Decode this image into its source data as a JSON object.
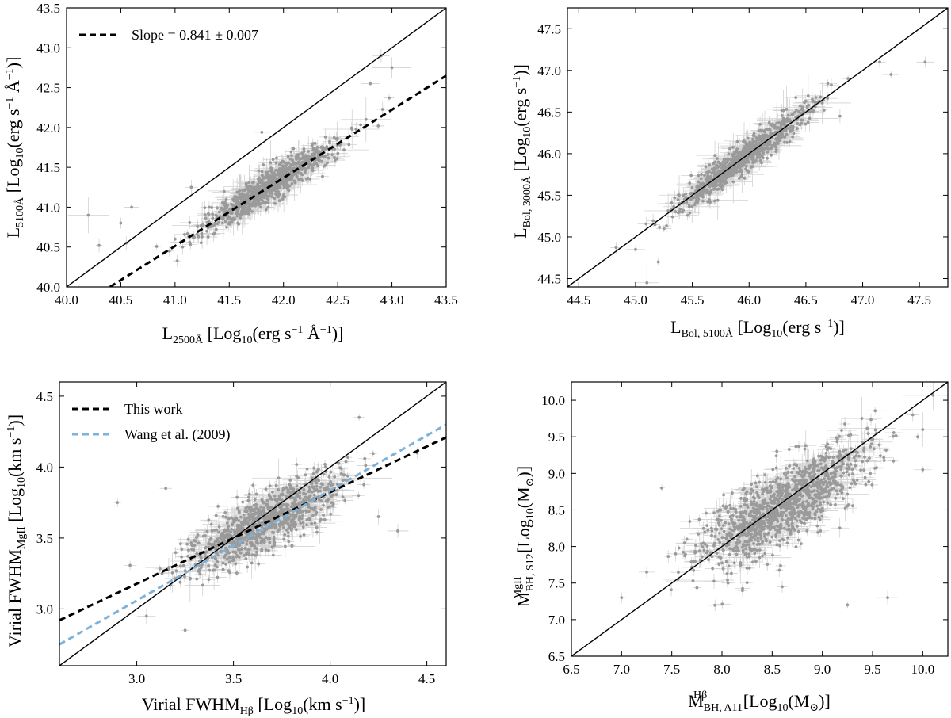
{
  "colors": {
    "points": "#9a9a9a",
    "errorbars": "#d2d2d2",
    "one_to_one": "#000000",
    "fit_black": "#000000",
    "fit_blue": "#7fb2d8"
  },
  "chart_data": [
    {
      "type": "scatter",
      "xlabel": "L2500Å [Log10(erg s−1 Å−1)]",
      "ylabel": "L5100Å [Log10(erg s−1 Å−1)]",
      "xlim": [
        40.0,
        43.5
      ],
      "ylim": [
        40.0,
        43.5
      ],
      "xticks": [
        "40.0",
        "40.5",
        "41.0",
        "41.5",
        "42.0",
        "42.5",
        "43.0",
        "43.5"
      ],
      "yticks": [
        "40.0",
        "40.5",
        "41.0",
        "41.5",
        "42.0",
        "42.5",
        "43.0",
        "43.5"
      ],
      "grid": false,
      "legend_position": "top-left",
      "legend": [
        {
          "label": "Slope = 0.841 ± 0.007",
          "style": "dashed",
          "color": "#000000"
        }
      ],
      "reference_line": {
        "x": [
          40.0,
          43.5
        ],
        "y": [
          40.0,
          43.5
        ]
      },
      "fit_lines": [
        {
          "label": "Slope = 0.841 ± 0.007",
          "x": [
            40.4,
            43.5
          ],
          "y": [
            40.0,
            42.65
          ],
          "color": "#000000"
        }
      ],
      "cloud": {
        "x_center": 41.85,
        "x_sd": 0.3,
        "slope": 0.841,
        "intercept_at_center": 41.25,
        "scatter": 0.1,
        "n_points": 900
      },
      "outliers": [
        [
          40.2,
          40.9
        ],
        [
          40.3,
          40.52
        ],
        [
          40.5,
          40.8
        ],
        [
          40.55,
          40.55
        ],
        [
          40.6,
          41.0
        ],
        [
          41.15,
          41.25
        ],
        [
          41.0,
          40.6
        ],
        [
          41.8,
          41.94
        ],
        [
          42.9,
          42.9
        ],
        [
          43.0,
          42.75
        ],
        [
          42.8,
          42.55
        ]
      ]
    },
    {
      "type": "scatter",
      "xlabel": "LBol, 5100Å [Log10(erg s−1)]",
      "ylabel": "LBol, 3000Å [Log10(erg s−1)]",
      "xlim": [
        44.4,
        47.75
      ],
      "ylim": [
        44.4,
        47.75
      ],
      "xticks": [
        "44.5",
        "45.0",
        "45.5",
        "46.0",
        "46.5",
        "47.0",
        "47.5"
      ],
      "yticks": [
        "44.5",
        "45.0",
        "45.5",
        "46.0",
        "46.5",
        "47.0",
        "47.5"
      ],
      "grid": false,
      "legend": [],
      "reference_line": {
        "x": [
          44.4,
          47.75
        ],
        "y": [
          44.4,
          47.75
        ]
      },
      "fit_lines": [],
      "cloud": {
        "x_center": 45.95,
        "x_sd": 0.3,
        "slope": 1.0,
        "intercept_at_center": 45.95,
        "scatter": 0.09,
        "n_points": 900
      },
      "outliers": [
        [
          45.1,
          44.45
        ],
        [
          45.0,
          44.85
        ],
        [
          45.2,
          44.7
        ],
        [
          45.25,
          45.1
        ],
        [
          45.7,
          45.9
        ],
        [
          47.25,
          46.95
        ],
        [
          47.55,
          47.1
        ],
        [
          47.15,
          47.1
        ],
        [
          46.8,
          46.45
        ]
      ]
    },
    {
      "type": "scatter",
      "xlabel": "Virial FWHMHβ [Log10(km s−1)]",
      "ylabel": "Virial FWHMMgII [Log10(km s−1)]",
      "xlim": [
        2.6,
        4.6
      ],
      "ylim": [
        2.6,
        4.6
      ],
      "xticks": [
        "3.0",
        "3.5",
        "4.0",
        "4.5"
      ],
      "yticks": [
        "3.0",
        "3.5",
        "4.0",
        "4.5"
      ],
      "grid": false,
      "legend_position": "top-left",
      "legend": [
        {
          "label": "This work",
          "style": "dashed",
          "color": "#000000"
        },
        {
          "label": "Wang et al. (2009)",
          "style": "dashed",
          "color": "#7fb2d8"
        }
      ],
      "reference_line": {
        "x": [
          2.6,
          4.6
        ],
        "y": [
          2.6,
          4.6
        ]
      },
      "fit_lines": [
        {
          "label": "This work",
          "x": [
            2.6,
            4.6
          ],
          "y": [
            2.92,
            4.21
          ],
          "color": "#000000"
        },
        {
          "label": "Wang et al. (2009)",
          "x": [
            2.6,
            4.6
          ],
          "y": [
            2.75,
            4.3
          ],
          "color": "#7fb2d8"
        }
      ],
      "cloud": {
        "x_center": 3.65,
        "x_sd": 0.2,
        "slope": 0.7,
        "intercept_at_center": 3.6,
        "scatter": 0.1,
        "n_points": 1000
      },
      "outliers": [
        [
          3.05,
          2.95
        ],
        [
          3.25,
          2.85
        ],
        [
          4.25,
          3.65
        ],
        [
          4.35,
          3.55
        ],
        [
          4.45,
          4.1
        ],
        [
          3.15,
          3.85
        ],
        [
          2.9,
          3.75
        ],
        [
          4.15,
          4.35
        ]
      ]
    },
    {
      "type": "scatter",
      "xlabel": "MBH, A11Hβ [Log10(M⊙)]",
      "ylabel": "MBH, S12MgII [Log10(M⊙)]",
      "xlim": [
        6.5,
        10.25
      ],
      "ylim": [
        6.5,
        10.25
      ],
      "xticks": [
        "6.5",
        "7.0",
        "7.5",
        "8.0",
        "8.5",
        "9.0",
        "9.5",
        "10.0"
      ],
      "yticks": [
        "6.5",
        "7.0",
        "7.5",
        "8.0",
        "8.5",
        "9.0",
        "9.5",
        "10.0"
      ],
      "grid": false,
      "legend": [],
      "reference_line": {
        "x": [
          6.5,
          10.25
        ],
        "y": [
          6.5,
          10.25
        ]
      },
      "fit_lines": [],
      "cloud": {
        "x_center": 8.65,
        "x_sd": 0.4,
        "slope": 0.8,
        "intercept_at_center": 8.6,
        "scatter": 0.25,
        "n_points": 1200
      },
      "outliers": [
        [
          7.0,
          7.3
        ],
        [
          7.25,
          7.65
        ],
        [
          7.4,
          8.8
        ],
        [
          9.65,
          7.3
        ],
        [
          9.25,
          7.2
        ],
        [
          9.95,
          9.5
        ],
        [
          10.0,
          9.6
        ],
        [
          10.0,
          9.05
        ],
        [
          9.9,
          9.8
        ],
        [
          8.6,
          7.45
        ]
      ]
    }
  ],
  "texts": {
    "p1": {
      "xlabel_main": "L",
      "xlabel_sub": "2500Å",
      "xlabel_tail": " [Log",
      "xlabel_sub2": "10",
      "xlabel_mid": "(erg s",
      "xlabel_sup": "−1",
      "xlabel_end": " Å",
      "xlabel_sup2": "−1",
      "xlabel_close": ")]",
      "ylabel_main": "L",
      "ylabel_sub": "5100Å",
      "ylabel_tail": " [Log",
      "ylabel_sub2": "10",
      "ylabel_mid": "(erg s",
      "ylabel_sup": "−1",
      "ylabel_end": " Å",
      "ylabel_sup2": "−1",
      "ylabel_close": ")]"
    },
    "p2": {
      "xlabel_main": "L",
      "xlabel_sub": "Bol, 5100Å",
      "xlabel_tail": " [Log",
      "xlabel_sub2": "10",
      "xlabel_mid": "(erg s",
      "xlabel_sup": "−1",
      "xlabel_close": ")]",
      "ylabel_main": "L",
      "ylabel_sub": "Bol, 3000Å",
      "ylabel_tail": " [Log",
      "ylabel_sub2": "10",
      "ylabel_mid": "(erg s",
      "ylabel_sup": "−1",
      "ylabel_close": ")]"
    },
    "p3": {
      "xlabel_main": "Virial FWHM",
      "xlabel_sub": "Hβ",
      "xlabel_tail": " [Log",
      "xlabel_sub2": "10",
      "xlabel_mid": "(km s",
      "xlabel_sup": "−1",
      "xlabel_close": ")]",
      "ylabel_main": "Virial FWHM",
      "ylabel_sub": "MgII",
      "ylabel_tail": " [Log",
      "ylabel_sub2": "10",
      "ylabel_mid": "(km s",
      "ylabel_sup": "−1",
      "ylabel_close": ")]"
    },
    "p4": {
      "xlabel_main": "M",
      "xlabel_sup": "Hβ",
      "xlabel_sub": "BH, A11",
      "xlabel_tail": " [Log",
      "xlabel_sub2": "10",
      "xlabel_mid": "(M",
      "xlabel_sub3": "⊙",
      "xlabel_close": ")]",
      "ylabel_main": "M",
      "ylabel_sup": "MgII",
      "ylabel_sub": "BH, S12",
      "ylabel_tail": " [Log",
      "ylabel_sub2": "10",
      "ylabel_mid": "(M",
      "ylabel_sub3": "⊙",
      "ylabel_close": ")]"
    }
  }
}
